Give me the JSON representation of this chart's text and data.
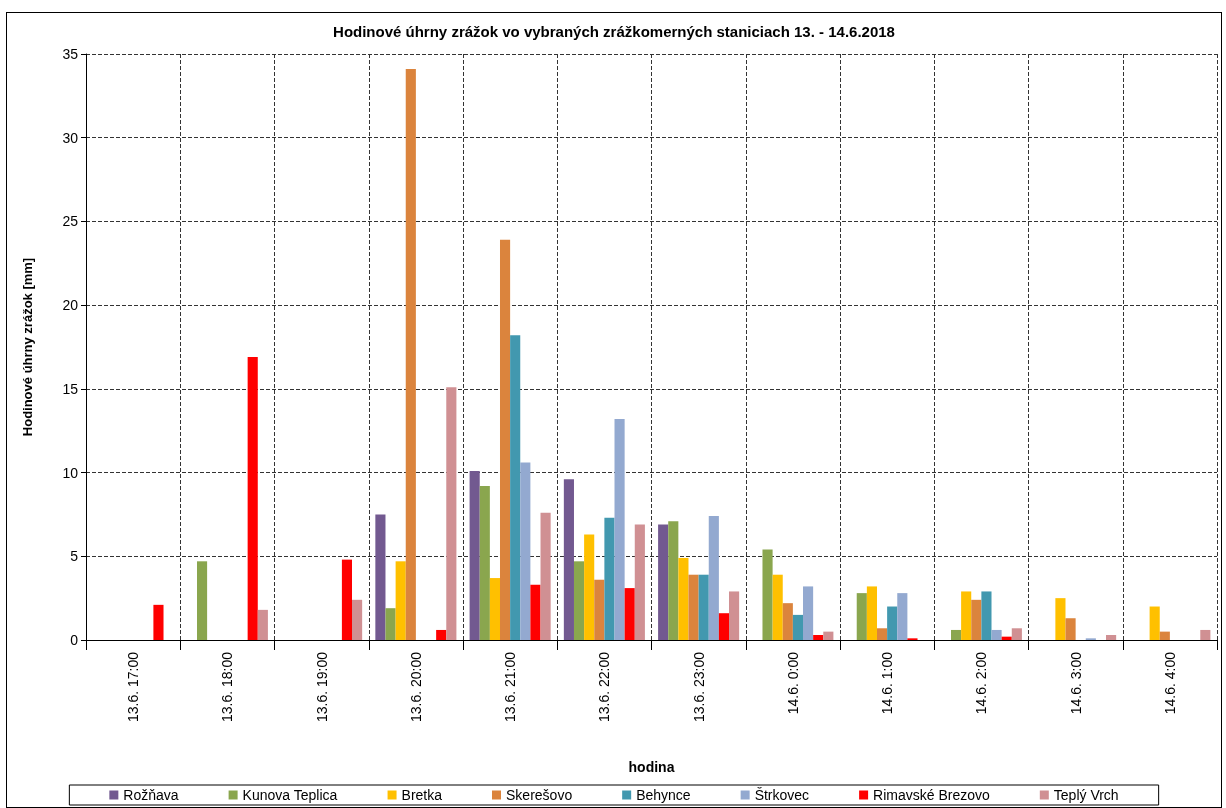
{
  "chart_data": {
    "type": "bar",
    "title": "Hodinové úhrny zrážok vo vybraných zrážkomerných staniciach 13. - 14.6.2018",
    "xlabel": "hodina",
    "ylabel": "Hodinové úhrny zrážok [mm]",
    "categories": [
      "13.6. 17:00",
      "13.6. 18:00",
      "13.6. 19:00",
      "13.6. 20:00",
      "13.6. 21:00",
      "13.6. 22:00",
      "13.6. 23:00",
      "14.6. 0:00",
      "14.6. 1:00",
      "14.6. 2:00",
      "14.6. 3:00",
      "14.6. 4:00"
    ],
    "series": [
      {
        "name": "Rožňava",
        "color": "#725990",
        "values": [
          0,
          0,
          0,
          7.5,
          10.1,
          9.6,
          6.9,
          0,
          0,
          0,
          0,
          0
        ]
      },
      {
        "name": "Kunova Teplica",
        "color": "#8aa64e",
        "values": [
          0,
          4.7,
          0,
          1.9,
          9.2,
          4.7,
          7.1,
          5.4,
          2.8,
          0.6,
          0,
          0
        ]
      },
      {
        "name": "Bretka",
        "color": "#ffc000",
        "values": [
          0,
          0,
          0,
          4.7,
          3.7,
          6.3,
          4.9,
          3.9,
          3.2,
          2.9,
          2.5,
          2.0
        ]
      },
      {
        "name": "Skerešovo",
        "color": "#db843d",
        "values": [
          0,
          0,
          0,
          34.1,
          23.9,
          3.6,
          3.9,
          2.2,
          0.7,
          2.4,
          1.3,
          0.5
        ]
      },
      {
        "name": "Behynce",
        "color": "#4298af",
        "values": [
          0,
          0,
          0,
          0,
          18.2,
          7.3,
          3.9,
          1.5,
          2.0,
          2.9,
          0,
          0
        ]
      },
      {
        "name": "Štrkovec",
        "color": "#93a9d0",
        "values": [
          0,
          0,
          0,
          0,
          10.6,
          13.2,
          7.4,
          3.2,
          2.8,
          0.6,
          0.1,
          0
        ]
      },
      {
        "name": "Rimavské Brezovo",
        "color": "#ff0000",
        "values": [
          2.1,
          16.9,
          4.8,
          0.6,
          3.3,
          3.1,
          1.6,
          0.3,
          0.1,
          0.2,
          0,
          0
        ]
      },
      {
        "name": "Teplý Vrch",
        "color": "#d09093",
        "values": [
          0,
          1.8,
          2.4,
          15.1,
          7.6,
          6.9,
          2.9,
          0.5,
          0,
          0.7,
          0.3,
          0.6
        ]
      }
    ],
    "ylim": [
      0,
      35
    ],
    "yticks": [
      0,
      5,
      10,
      15,
      20,
      25,
      30,
      35
    ],
    "grid": true,
    "legend": "bottom"
  }
}
